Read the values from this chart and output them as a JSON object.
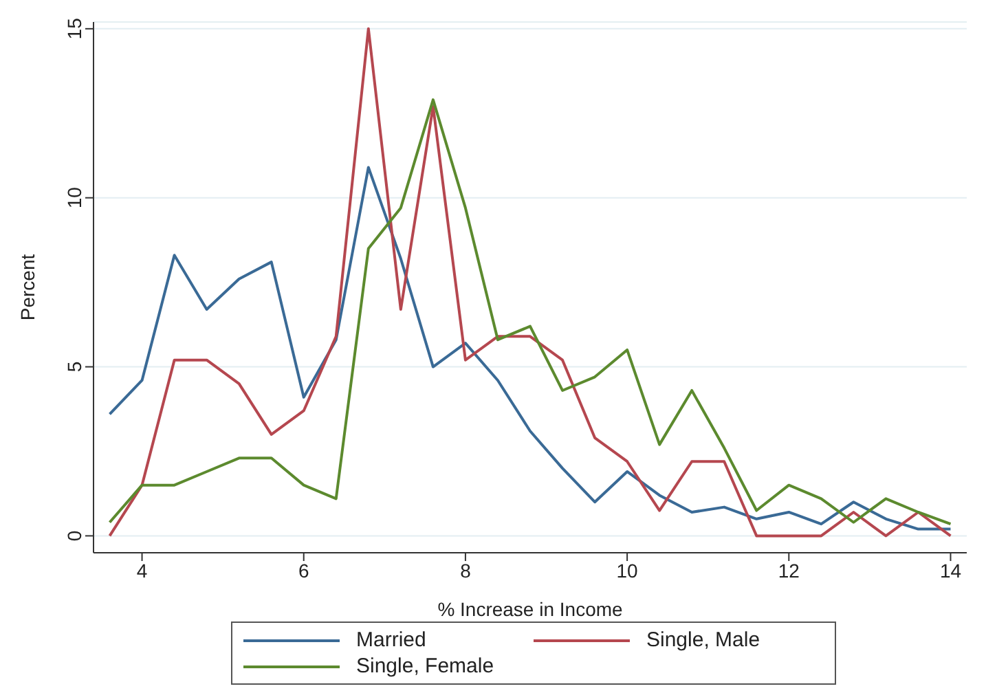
{
  "chart_data": {
    "type": "line",
    "xlabel": "% Increase in Income",
    "ylabel": "Percent",
    "x": [
      3.6,
      4.0,
      4.4,
      4.8,
      5.2,
      5.6,
      6.0,
      6.4,
      6.8,
      7.2,
      7.6,
      8.0,
      8.4,
      8.8,
      9.2,
      9.6,
      10.0,
      10.4,
      10.8,
      11.2,
      11.6,
      12.0,
      12.4,
      12.8,
      13.2,
      13.6,
      14.0
    ],
    "series": [
      {
        "name": "Married",
        "color": "#3a6a96",
        "values": [
          3.6,
          4.6,
          8.3,
          6.7,
          7.6,
          8.1,
          4.1,
          5.8,
          10.9,
          8.2,
          5.0,
          5.7,
          4.6,
          3.1,
          2.0,
          1.0,
          1.9,
          1.2,
          0.7,
          0.85,
          0.5,
          0.7,
          0.35,
          1.0,
          0.5,
          0.2,
          0.2
        ]
      },
      {
        "name": "Single, Male",
        "color": "#b5474f",
        "values": [
          0,
          1.5,
          5.2,
          5.2,
          4.5,
          3.0,
          3.7,
          5.9,
          15.0,
          6.7,
          12.7,
          5.2,
          5.9,
          5.9,
          5.2,
          2.9,
          2.2,
          0.75,
          2.2,
          2.2,
          0,
          0,
          0,
          0.7,
          0,
          0.7,
          0
        ]
      },
      {
        "name": "Single, Female",
        "color": "#5c8a2e",
        "values": [
          0.4,
          1.5,
          1.5,
          1.9,
          2.3,
          2.3,
          1.5,
          1.1,
          8.5,
          9.7,
          12.9,
          9.7,
          5.8,
          6.2,
          4.3,
          4.7,
          5.5,
          2.7,
          4.3,
          2.6,
          0.75,
          1.5,
          1.1,
          0.4,
          1.1,
          0.7,
          0.35
        ]
      }
    ],
    "xlim": [
      3.4,
      14.2
    ],
    "xticks": [
      4,
      6,
      8,
      10,
      12,
      14
    ],
    "ylim": [
      -0.5,
      15.2
    ],
    "yticks": [
      0,
      5,
      10,
      15
    ],
    "grid": "y",
    "legend": "bottom",
    "marker": "none",
    "line_style": "solid"
  }
}
